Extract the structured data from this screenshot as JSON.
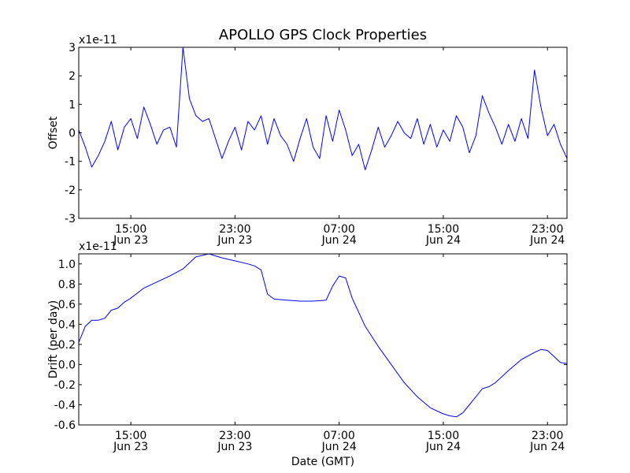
{
  "figure_title": "APOLLO GPS Clock Properties",
  "chart_data": [
    {
      "type": "line",
      "title": "APOLLO GPS Clock Properties",
      "xlabel": "",
      "ylabel": "Offset",
      "offset_text": "x1e-11",
      "ylim": [
        -3,
        3
      ],
      "yticks": [
        -3,
        -2,
        -1,
        0,
        1,
        2,
        3
      ],
      "ytick_labels": [
        "-3",
        "-2",
        "-1",
        "0",
        "1",
        "2",
        "3"
      ],
      "xlim": [
        "2013-06-23T11:00",
        "2013-06-25T00:30"
      ],
      "xticks": [
        {
          "time": "2013-06-23T15:00",
          "label_time": "15:00",
          "label_date": "Jun 23"
        },
        {
          "time": "2013-06-23T23:00",
          "label_time": "23:00",
          "label_date": "Jun 23"
        },
        {
          "time": "2013-06-24T07:00",
          "label_time": "07:00",
          "label_date": "Jun 24"
        },
        {
          "time": "2013-06-24T15:00",
          "label_time": "15:00",
          "label_date": "Jun 24"
        },
        {
          "time": "2013-06-24T23:00",
          "label_time": "23:00",
          "label_date": "Jun 24"
        }
      ],
      "grid": false,
      "series": [
        {
          "color": "#0000ff",
          "x": [
            "2013-06-23T11:00",
            "2013-06-23T11:30",
            "2013-06-23T12:00",
            "2013-06-23T12:30",
            "2013-06-23T13:00",
            "2013-06-23T13:30",
            "2013-06-23T14:00",
            "2013-06-23T14:30",
            "2013-06-23T15:00",
            "2013-06-23T15:30",
            "2013-06-23T16:00",
            "2013-06-23T16:30",
            "2013-06-23T17:00",
            "2013-06-23T17:30",
            "2013-06-23T18:00",
            "2013-06-23T18:30",
            "2013-06-23T19:00",
            "2013-06-23T19:30",
            "2013-06-23T20:00",
            "2013-06-23T20:30",
            "2013-06-23T21:00",
            "2013-06-23T21:30",
            "2013-06-23T22:00",
            "2013-06-23T22:30",
            "2013-06-23T23:00",
            "2013-06-23T23:30",
            "2013-06-24T00:00",
            "2013-06-24T00:30",
            "2013-06-24T01:00",
            "2013-06-24T01:30",
            "2013-06-24T02:00",
            "2013-06-24T02:30",
            "2013-06-24T03:00",
            "2013-06-24T03:30",
            "2013-06-24T04:00",
            "2013-06-24T04:30",
            "2013-06-24T05:00",
            "2013-06-24T05:30",
            "2013-06-24T06:00",
            "2013-06-24T06:30",
            "2013-06-24T07:00",
            "2013-06-24T07:30",
            "2013-06-24T08:00",
            "2013-06-24T08:30",
            "2013-06-24T09:00",
            "2013-06-24T09:30",
            "2013-06-24T10:00",
            "2013-06-24T10:30",
            "2013-06-24T11:00",
            "2013-06-24T11:30",
            "2013-06-24T12:00",
            "2013-06-24T12:30",
            "2013-06-24T13:00",
            "2013-06-24T13:30",
            "2013-06-24T14:00",
            "2013-06-24T14:30",
            "2013-06-24T15:00",
            "2013-06-24T15:30",
            "2013-06-24T16:00",
            "2013-06-24T16:30",
            "2013-06-24T17:00",
            "2013-06-24T17:30",
            "2013-06-24T18:00",
            "2013-06-24T18:30",
            "2013-06-24T19:00",
            "2013-06-24T19:30",
            "2013-06-24T20:00",
            "2013-06-24T20:30",
            "2013-06-24T21:00",
            "2013-06-24T21:30",
            "2013-06-24T22:00",
            "2013-06-24T22:30",
            "2013-06-24T23:00",
            "2013-06-24T23:30",
            "2013-06-25T00:00",
            "2013-06-25T00:30"
          ],
          "y": [
            0.1,
            -0.5,
            -1.2,
            -0.8,
            -0.3,
            0.4,
            -0.6,
            0.2,
            0.5,
            -0.2,
            0.9,
            0.3,
            -0.4,
            0.1,
            0.2,
            -0.5,
            3.0,
            1.2,
            0.6,
            0.4,
            0.5,
            -0.2,
            -0.9,
            -0.3,
            0.2,
            -0.6,
            0.4,
            0.1,
            0.6,
            -0.4,
            0.5,
            -0.1,
            -0.4,
            -1.0,
            -0.2,
            0.5,
            -0.5,
            -0.9,
            0.6,
            -0.3,
            0.8,
            0.1,
            -0.8,
            -0.4,
            -1.3,
            -0.6,
            0.2,
            -0.5,
            -0.1,
            0.4,
            0.0,
            -0.2,
            0.5,
            -0.4,
            0.3,
            -0.5,
            0.1,
            -0.3,
            0.6,
            0.2,
            -0.7,
            -0.1,
            1.3,
            0.7,
            0.2,
            -0.4,
            0.3,
            -0.3,
            0.5,
            -0.2,
            2.2,
            0.9,
            -0.1,
            0.3,
            -0.4,
            -0.9
          ]
        }
      ]
    },
    {
      "type": "line",
      "title": "",
      "xlabel": "Date (GMT)",
      "ylabel": "Drift (per day)",
      "offset_text": "x1e-11",
      "ylim": [
        -0.6,
        1.1
      ],
      "yticks": [
        -0.6,
        -0.4,
        -0.2,
        0.0,
        0.2,
        0.4,
        0.6,
        0.8,
        1.0
      ],
      "ytick_labels": [
        "-0.6",
        "-0.4",
        "-0.2",
        "0.0",
        "0.2",
        "0.4",
        "0.6",
        "0.8",
        "1.0"
      ],
      "xlim": [
        "2013-06-23T11:00",
        "2013-06-25T00:30"
      ],
      "xticks": [
        {
          "time": "2013-06-23T15:00",
          "label_time": "15:00",
          "label_date": "Jun 23"
        },
        {
          "time": "2013-06-23T23:00",
          "label_time": "23:00",
          "label_date": "Jun 23"
        },
        {
          "time": "2013-06-24T07:00",
          "label_time": "07:00",
          "label_date": "Jun 24"
        },
        {
          "time": "2013-06-24T15:00",
          "label_time": "15:00",
          "label_date": "Jun 24"
        },
        {
          "time": "2013-06-24T23:00",
          "label_time": "23:00",
          "label_date": "Jun 24"
        }
      ],
      "grid": false,
      "series": [
        {
          "color": "#0000ff",
          "x": [
            "2013-06-23T11:00",
            "2013-06-23T11:30",
            "2013-06-23T12:00",
            "2013-06-23T12:30",
            "2013-06-23T13:00",
            "2013-06-23T13:30",
            "2013-06-23T14:00",
            "2013-06-23T14:30",
            "2013-06-23T15:00",
            "2013-06-23T16:00",
            "2013-06-23T17:00",
            "2013-06-23T18:00",
            "2013-06-23T19:00",
            "2013-06-23T20:00",
            "2013-06-23T21:00",
            "2013-06-23T21:30",
            "2013-06-23T22:00",
            "2013-06-23T23:00",
            "2013-06-24T00:00",
            "2013-06-24T00:30",
            "2013-06-24T01:00",
            "2013-06-24T01:30",
            "2013-06-24T02:00",
            "2013-06-24T03:00",
            "2013-06-24T04:00",
            "2013-06-24T05:00",
            "2013-06-24T06:00",
            "2013-06-24T06:30",
            "2013-06-24T07:00",
            "2013-06-24T07:30",
            "2013-06-24T08:00",
            "2013-06-24T09:00",
            "2013-06-24T10:00",
            "2013-06-24T11:00",
            "2013-06-24T12:00",
            "2013-06-24T13:00",
            "2013-06-24T14:00",
            "2013-06-24T15:00",
            "2013-06-24T15:30",
            "2013-06-24T16:00",
            "2013-06-24T16:30",
            "2013-06-24T17:00",
            "2013-06-24T17:30",
            "2013-06-24T18:00",
            "2013-06-24T18:30",
            "2013-06-24T19:00",
            "2013-06-24T20:00",
            "2013-06-24T21:00",
            "2013-06-24T22:00",
            "2013-06-24T22:30",
            "2013-06-24T23:00",
            "2013-06-24T23:30",
            "2013-06-25T00:00",
            "2013-06-25T00:30"
          ],
          "y": [
            0.22,
            0.38,
            0.44,
            0.44,
            0.46,
            0.54,
            0.56,
            0.62,
            0.66,
            0.76,
            0.82,
            0.88,
            0.95,
            1.07,
            1.1,
            1.08,
            1.06,
            1.03,
            1.0,
            0.98,
            0.94,
            0.7,
            0.65,
            0.64,
            0.63,
            0.63,
            0.64,
            0.78,
            0.88,
            0.86,
            0.66,
            0.38,
            0.18,
            0.0,
            -0.18,
            -0.32,
            -0.43,
            -0.49,
            -0.51,
            -0.52,
            -0.48,
            -0.4,
            -0.32,
            -0.24,
            -0.22,
            -0.18,
            -0.06,
            0.05,
            0.12,
            0.15,
            0.14,
            0.08,
            0.02,
            0.01
          ]
        }
      ]
    }
  ]
}
